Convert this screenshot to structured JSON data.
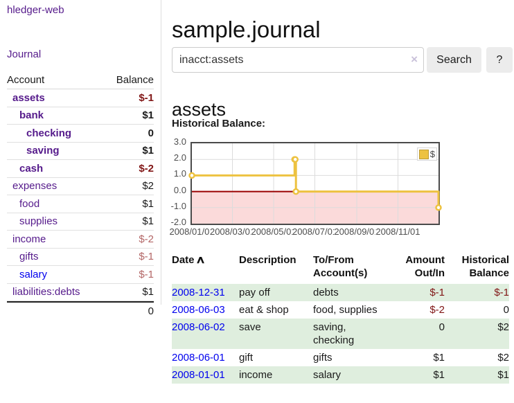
{
  "sidebar": {
    "brand": "hledger-web",
    "nav_link": "Journal",
    "table": {
      "account_header": "Account",
      "balance_header": "Balance",
      "rows": [
        {
          "account": "assets",
          "balance": "$-1",
          "level": 0,
          "bold": true,
          "link": "visited",
          "neg": "strong"
        },
        {
          "account": "bank",
          "balance": "$1",
          "level": 1,
          "bold": true,
          "link": "visited",
          "neg": "none"
        },
        {
          "account": "checking",
          "balance": "0",
          "level": 2,
          "bold": true,
          "link": "visited",
          "neg": "none"
        },
        {
          "account": "saving",
          "balance": "$1",
          "level": 2,
          "bold": true,
          "link": "visited",
          "neg": "none"
        },
        {
          "account": "cash",
          "balance": "$-2",
          "level": 1,
          "bold": true,
          "link": "visited",
          "neg": "strong"
        },
        {
          "account": "expenses",
          "balance": "$2",
          "level": 0,
          "bold": false,
          "link": "visited",
          "neg": "none"
        },
        {
          "account": "food",
          "balance": "$1",
          "level": 1,
          "bold": false,
          "link": "visited",
          "neg": "none"
        },
        {
          "account": "supplies",
          "balance": "$1",
          "level": 1,
          "bold": false,
          "link": "visited",
          "neg": "none"
        },
        {
          "account": "income",
          "balance": "$-2",
          "level": 0,
          "bold": false,
          "link": "visited",
          "neg": "soft"
        },
        {
          "account": "gifts",
          "balance": "$-1",
          "level": 1,
          "bold": false,
          "link": "visited",
          "neg": "soft"
        },
        {
          "account": "salary",
          "balance": "$-1",
          "level": 1,
          "bold": false,
          "link": "unvisited",
          "neg": "soft"
        },
        {
          "account": "liabilities:debts",
          "balance": "$1",
          "level": 0,
          "bold": false,
          "link": "visited",
          "neg": "none"
        }
      ],
      "total": "0"
    }
  },
  "main": {
    "title": "sample.journal",
    "search": {
      "value": "inacct:assets",
      "clear_glyph": "×",
      "button_label": "Search",
      "help_label": "?"
    },
    "account_heading": "assets",
    "chart_title": "Historical Balance:"
  },
  "chart_data": {
    "type": "line",
    "step": true,
    "title": "Historical Balance",
    "series": [
      {
        "name": "$",
        "color": "#edc240",
        "points": [
          [
            "2008-01-01",
            1
          ],
          [
            "2008-06-01",
            2
          ],
          [
            "2008-06-02",
            2
          ],
          [
            "2008-06-03",
            0
          ],
          [
            "2008-12-31",
            -1
          ]
        ]
      }
    ],
    "xrange": [
      "2008-01-01",
      "2008-12-31"
    ],
    "ylim": [
      -2,
      3
    ],
    "yticks": [
      3.0,
      2.0,
      1.0,
      0.0,
      -1.0,
      -2.0
    ],
    "ytick_labels": [
      "3.0",
      "2.0",
      "1.0",
      "0.0",
      "-1.0",
      "-2.0"
    ],
    "xticks": [
      "2008-01-01",
      "2008-03-01",
      "2008-05-01",
      "2008-07-01",
      "2008-09-01",
      "2008-11-01"
    ],
    "xtick_labels": [
      "2008/01/01",
      "2008/03/01",
      "2008/05/01",
      "2008/07/01",
      "2008/09/01",
      "2008/11/01"
    ],
    "legend": {
      "label": "$",
      "position": "top-right"
    },
    "grid": true,
    "negative_region_color": "#fbdada",
    "zero_line_color": "#990000"
  },
  "register": {
    "headers": {
      "date": "Date",
      "description": "Description",
      "tofrom": "To/From Account(s)",
      "amount": "Amount Out/In",
      "balance": "Historical Balance"
    },
    "sort_icon": "∧",
    "rows": [
      {
        "date": "2008-12-31",
        "description": "pay off",
        "accounts": "debts",
        "amount": "$-1",
        "balance": "$-1",
        "amount_neg": true,
        "balance_neg": true
      },
      {
        "date": "2008-06-03",
        "description": "eat & shop",
        "accounts": "food, supplies",
        "amount": "$-2",
        "balance": "0",
        "amount_neg": true,
        "balance_neg": false
      },
      {
        "date": "2008-06-02",
        "description": "save",
        "accounts": "saving, checking",
        "amount": "0",
        "balance": "$2",
        "amount_neg": false,
        "balance_neg": false
      },
      {
        "date": "2008-06-01",
        "description": "gift",
        "accounts": "gifts",
        "amount": "$1",
        "balance": "$2",
        "amount_neg": false,
        "balance_neg": false
      },
      {
        "date": "2008-01-01",
        "description": "income",
        "accounts": "salary",
        "amount": "$1",
        "balance": "$1",
        "amount_neg": false,
        "balance_neg": false
      }
    ]
  },
  "colors": {
    "visited_link": "#551a8b",
    "unvisited_link": "#0000ee",
    "negative_strong": "#801515",
    "negative_soft": "#b36666",
    "row_stripe_green": "#dfeede",
    "series_gold": "#edc240",
    "chart_negative_fill": "#fbdada",
    "chart_zero_line": "#990000",
    "button_gray": "#ececec"
  }
}
